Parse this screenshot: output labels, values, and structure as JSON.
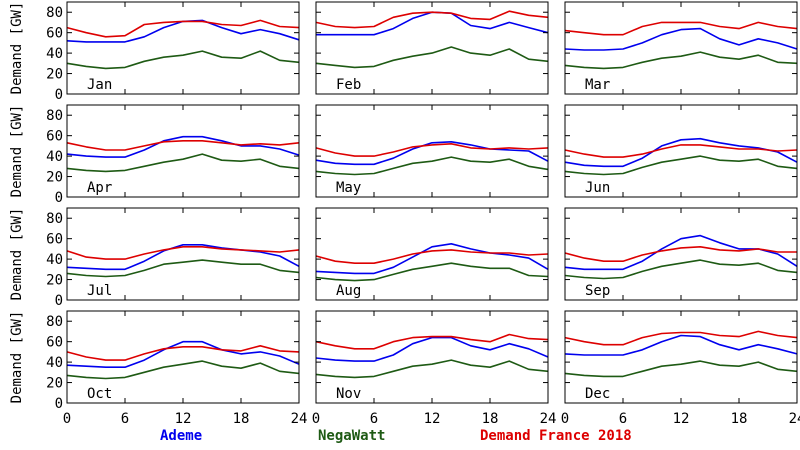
{
  "chart_data": {
    "type": "line",
    "layout": "small-multiples 4x3",
    "ylabel": "Demand [GW]",
    "xlim": [
      0,
      24
    ],
    "ylim": [
      0,
      90
    ],
    "xticks": [
      0,
      6,
      12,
      18,
      24
    ],
    "yticks": [
      0,
      20,
      40,
      60,
      80
    ],
    "x": [
      0,
      2,
      4,
      6,
      8,
      10,
      12,
      14,
      16,
      18,
      20,
      22,
      24
    ],
    "series_meta": [
      {
        "name": "Ademe",
        "color": "#0000ee"
      },
      {
        "name": "NegaWatt",
        "color": "#1e5a14"
      },
      {
        "name": "Demand France 2018",
        "color": "#dd0000"
      }
    ],
    "panels": [
      {
        "label": "Jan",
        "series": [
          {
            "name": "Ademe",
            "values": [
              52,
              51,
              51,
              51,
              56,
              65,
              71,
              72,
              65,
              59,
              63,
              59,
              53
            ]
          },
          {
            "name": "NegaWatt",
            "values": [
              30,
              27,
              25,
              26,
              32,
              36,
              38,
              42,
              36,
              35,
              42,
              33,
              31
            ]
          },
          {
            "name": "Demand France 2018",
            "values": [
              65,
              60,
              56,
              57,
              68,
              70,
              71,
              71,
              68,
              67,
              72,
              66,
              65
            ]
          }
        ]
      },
      {
        "label": "Feb",
        "series": [
          {
            "name": "Ademe",
            "values": [
              58,
              58,
              58,
              58,
              64,
              74,
              80,
              79,
              67,
              64,
              70,
              65,
              60
            ]
          },
          {
            "name": "NegaWatt",
            "values": [
              30,
              28,
              26,
              27,
              33,
              37,
              40,
              46,
              40,
              38,
              44,
              34,
              32
            ]
          },
          {
            "name": "Demand France 2018",
            "values": [
              70,
              66,
              65,
              66,
              75,
              79,
              80,
              79,
              74,
              73,
              81,
              77,
              75
            ]
          }
        ]
      },
      {
        "label": "Mar",
        "series": [
          {
            "name": "Ademe",
            "values": [
              44,
              43,
              43,
              44,
              50,
              58,
              63,
              64,
              54,
              48,
              54,
              50,
              44
            ]
          },
          {
            "name": "NegaWatt",
            "values": [
              28,
              26,
              25,
              26,
              31,
              35,
              37,
              41,
              36,
              34,
              38,
              31,
              30
            ]
          },
          {
            "name": "Demand France 2018",
            "values": [
              62,
              60,
              58,
              58,
              66,
              70,
              70,
              70,
              66,
              64,
              70,
              66,
              64
            ]
          }
        ]
      },
      {
        "label": "Apr",
        "series": [
          {
            "name": "Ademe",
            "values": [
              42,
              40,
              39,
              39,
              46,
              55,
              59,
              59,
              55,
              50,
              50,
              47,
              41
            ]
          },
          {
            "name": "NegaWatt",
            "values": [
              28,
              26,
              25,
              26,
              30,
              34,
              37,
              42,
              36,
              35,
              37,
              30,
              28
            ]
          },
          {
            "name": "Demand France 2018",
            "values": [
              53,
              49,
              46,
              46,
              50,
              54,
              55,
              55,
              53,
              51,
              52,
              51,
              53
            ]
          }
        ]
      },
      {
        "label": "May",
        "series": [
          {
            "name": "Ademe",
            "values": [
              36,
              33,
              32,
              32,
              38,
              47,
              53,
              54,
              51,
              47,
              46,
              45,
              35
            ]
          },
          {
            "name": "NegaWatt",
            "values": [
              25,
              23,
              22,
              23,
              28,
              33,
              35,
              39,
              35,
              34,
              37,
              30,
              27
            ]
          },
          {
            "name": "Demand France 2018",
            "values": [
              48,
              43,
              40,
              40,
              44,
              49,
              51,
              52,
              48,
              47,
              48,
              47,
              48
            ]
          }
        ]
      },
      {
        "label": "Jun",
        "series": [
          {
            "name": "Ademe",
            "values": [
              34,
              31,
              30,
              30,
              38,
              50,
              56,
              57,
              53,
              50,
              48,
              44,
              34
            ]
          },
          {
            "name": "NegaWatt",
            "values": [
              25,
              23,
              22,
              23,
              29,
              34,
              37,
              40,
              36,
              35,
              37,
              30,
              28
            ]
          },
          {
            "name": "Demand France 2018",
            "values": [
              46,
              42,
              39,
              39,
              42,
              47,
              51,
              51,
              49,
              47,
              47,
              45,
              46
            ]
          }
        ]
      },
      {
        "label": "Jul",
        "series": [
          {
            "name": "Ademe",
            "values": [
              32,
              31,
              30,
              30,
              38,
              48,
              54,
              54,
              51,
              49,
              47,
              43,
              33
            ]
          },
          {
            "name": "NegaWatt",
            "values": [
              26,
              24,
              23,
              24,
              29,
              35,
              37,
              39,
              37,
              35,
              35,
              29,
              27
            ]
          },
          {
            "name": "Demand France 2018",
            "values": [
              48,
              42,
              40,
              40,
              45,
              49,
              52,
              52,
              50,
              49,
              48,
              47,
              49
            ]
          }
        ]
      },
      {
        "label": "Aug",
        "series": [
          {
            "name": "Ademe",
            "values": [
              28,
              27,
              26,
              26,
              32,
              42,
              52,
              55,
              50,
              46,
              44,
              41,
              30
            ]
          },
          {
            "name": "NegaWatt",
            "values": [
              22,
              20,
              19,
              20,
              25,
              30,
              33,
              36,
              33,
              31,
              31,
              24,
              23
            ]
          },
          {
            "name": "Demand France 2018",
            "values": [
              43,
              38,
              36,
              36,
              40,
              45,
              48,
              49,
              47,
              46,
              46,
              44,
              45
            ]
          }
        ]
      },
      {
        "label": "Sep",
        "series": [
          {
            "name": "Ademe",
            "values": [
              32,
              30,
              30,
              30,
              38,
              50,
              60,
              63,
              56,
              50,
              50,
              45,
              33
            ]
          },
          {
            "name": "NegaWatt",
            "values": [
              24,
              22,
              21,
              22,
              28,
              33,
              36,
              39,
              35,
              34,
              36,
              29,
              27
            ]
          },
          {
            "name": "Demand France 2018",
            "values": [
              46,
              41,
              38,
              38,
              44,
              48,
              51,
              52,
              49,
              48,
              50,
              47,
              47
            ]
          }
        ]
      },
      {
        "label": "Oct",
        "series": [
          {
            "name": "Ademe",
            "values": [
              37,
              36,
              35,
              35,
              42,
              52,
              60,
              60,
              52,
              48,
              50,
              46,
              38
            ]
          },
          {
            "name": "NegaWatt",
            "values": [
              27,
              25,
              24,
              25,
              30,
              35,
              38,
              41,
              36,
              34,
              39,
              31,
              29
            ]
          },
          {
            "name": "Demand France 2018",
            "values": [
              50,
              45,
              42,
              42,
              48,
              53,
              55,
              55,
              52,
              51,
              56,
              51,
              50
            ]
          }
        ]
      },
      {
        "label": "Nov",
        "series": [
          {
            "name": "Ademe",
            "values": [
              44,
              42,
              41,
              41,
              47,
              58,
              64,
              64,
              56,
              52,
              58,
              53,
              45
            ]
          },
          {
            "name": "NegaWatt",
            "values": [
              28,
              26,
              25,
              26,
              31,
              36,
              38,
              42,
              37,
              35,
              41,
              33,
              31
            ]
          },
          {
            "name": "Demand France 2018",
            "values": [
              60,
              56,
              53,
              53,
              60,
              64,
              65,
              65,
              62,
              60,
              67,
              63,
              62
            ]
          }
        ]
      },
      {
        "label": "Dec",
        "series": [
          {
            "name": "Ademe",
            "values": [
              48,
              47,
              47,
              47,
              52,
              60,
              66,
              65,
              57,
              52,
              57,
              53,
              48
            ]
          },
          {
            "name": "NegaWatt",
            "values": [
              29,
              27,
              26,
              26,
              31,
              36,
              38,
              41,
              37,
              36,
              40,
              33,
              31
            ]
          },
          {
            "name": "Demand France 2018",
            "values": [
              64,
              60,
              57,
              57,
              64,
              68,
              69,
              69,
              66,
              65,
              70,
              66,
              64
            ]
          }
        ]
      }
    ]
  }
}
